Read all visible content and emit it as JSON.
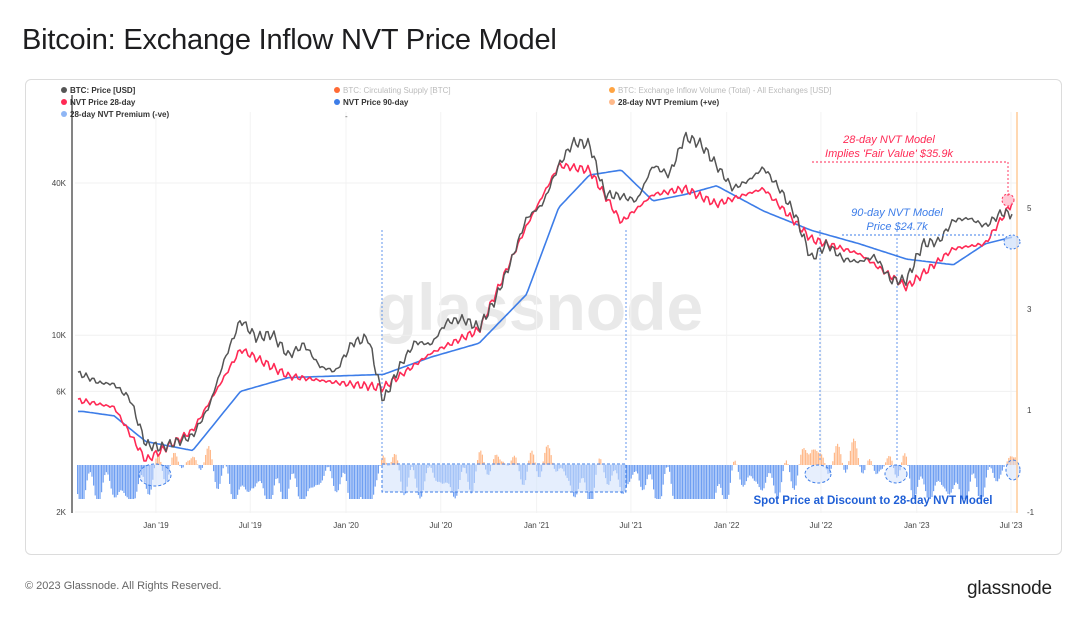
{
  "page": {
    "title": "Bitcoin: Exchange Inflow NVT Price Model",
    "footer": "© 2023 Glassnode. All Rights Reserved.",
    "brand": "glassnode",
    "watermark": "glassnode"
  },
  "colors": {
    "price": "#555555",
    "nvt28": "#ff2a55",
    "nvt90": "#3d7de8",
    "premium_pos": "#ffb98a",
    "premium_neg": "#6f9ff2",
    "supply": "#ff5a1f",
    "inflow": "#ff9a2e"
  },
  "chart_data": {
    "type": "line",
    "title": "Bitcoin: Exchange Inflow NVT Price Model",
    "x_ticks": [
      "Jan '19",
      "Jul '19",
      "Jan '20",
      "Jul '20",
      "Jan '21",
      "Jul '21",
      "Jan '22",
      "Jul '22",
      "Jan '23",
      "Jul '23"
    ],
    "y_left_ticks": [
      "2K",
      "6K",
      "10K",
      "40K"
    ],
    "y_right_ticks": [
      "5",
      "3",
      "1",
      "-1"
    ],
    "y_left_scale": "log",
    "legend": [
      {
        "name": "BTC: Price [USD]",
        "color": "#555555",
        "muted": false
      },
      {
        "name": "BTC: Circulating Supply [BTC]",
        "color": "#ff5a1f",
        "muted": true
      },
      {
        "name": "BTC: Exchange Inflow Volume (Total) - All Exchanges [USD]",
        "color": "#ff9a2e",
        "muted": true
      },
      {
        "name": "NVT Price 28-day",
        "color": "#ff2a55",
        "muted": false
      },
      {
        "name": "NVT Price 90-day",
        "color": "#3d7de8",
        "muted": false
      },
      {
        "name": "28-day NVT Premium (+ve)",
        "color": "#ffb98a",
        "muted": false
      },
      {
        "name": "28-day NVT Premium (-ve)",
        "color": "#8fb6f5",
        "muted": false
      }
    ],
    "legend_extra": "-",
    "series": [
      {
        "name": "BTC: Price [USD]",
        "x": [
          "2018-08",
          "2018-09",
          "2018-10",
          "2018-11",
          "2018-12",
          "2019-01",
          "2019-02",
          "2019-03",
          "2019-04",
          "2019-05",
          "2019-06",
          "2019-07",
          "2019-08",
          "2019-09",
          "2019-10",
          "2019-11",
          "2019-12",
          "2020-01",
          "2020-02",
          "2020-03",
          "2020-04",
          "2020-05",
          "2020-06",
          "2020-07",
          "2020-08",
          "2020-09",
          "2020-10",
          "2020-11",
          "2020-12",
          "2021-01",
          "2021-02",
          "2021-03",
          "2021-04",
          "2021-05",
          "2021-06",
          "2021-07",
          "2021-08",
          "2021-09",
          "2021-10",
          "2021-11",
          "2021-12",
          "2022-01",
          "2022-02",
          "2022-03",
          "2022-04",
          "2022-05",
          "2022-06",
          "2022-07",
          "2022-08",
          "2022-09",
          "2022-10",
          "2022-11",
          "2022-12",
          "2023-01",
          "2023-02",
          "2023-03",
          "2023-04",
          "2023-05",
          "2023-06",
          "2023-07"
        ],
        "values": [
          7000,
          6500,
          6400,
          5600,
          3700,
          3600,
          3800,
          4000,
          5200,
          8000,
          11500,
          9800,
          10100,
          8300,
          9200,
          7500,
          7200,
          9300,
          9800,
          5500,
          7500,
          9400,
          9200,
          11300,
          11600,
          10700,
          13700,
          19500,
          29000,
          33000,
          47000,
          58000,
          57000,
          36000,
          35500,
          34000,
          47000,
          43000,
          61000,
          57000,
          47000,
          38000,
          41000,
          46000,
          38000,
          30000,
          20000,
          23000,
          20000,
          19500,
          20500,
          16500,
          16500,
          23000,
          23500,
          28500,
          29000,
          27000,
          30500,
          30000
        ]
      },
      {
        "name": "NVT Price 28-day",
        "x": [
          "2018-08",
          "2018-10",
          "2018-12",
          "2019-03",
          "2019-06",
          "2019-09",
          "2019-12",
          "2020-03",
          "2020-06",
          "2020-09",
          "2020-12",
          "2021-02",
          "2021-04",
          "2021-06",
          "2021-08",
          "2021-10",
          "2021-12",
          "2022-03",
          "2022-06",
          "2022-09",
          "2022-12",
          "2023-03",
          "2023-05",
          "2023-07"
        ],
        "values": [
          5500,
          5200,
          3200,
          4200,
          8800,
          6900,
          6500,
          6200,
          8500,
          10500,
          27000,
          47000,
          45000,
          28000,
          36000,
          38000,
          33000,
          38000,
          24000,
          21000,
          15500,
          22000,
          23000,
          35900
        ]
      },
      {
        "name": "NVT Price 90-day",
        "x": [
          "2018-08",
          "2018-10",
          "2018-12",
          "2019-03",
          "2019-06",
          "2019-09",
          "2019-12",
          "2020-03",
          "2020-06",
          "2020-09",
          "2020-12",
          "2021-02",
          "2021-04",
          "2021-06",
          "2021-08",
          "2021-10",
          "2021-12",
          "2022-03",
          "2022-06",
          "2022-09",
          "2022-12",
          "2023-03",
          "2023-05",
          "2023-07"
        ],
        "values": [
          5000,
          4800,
          3800,
          3500,
          6000,
          6800,
          6900,
          7000,
          8200,
          9300,
          14500,
          32000,
          43000,
          45000,
          34000,
          36000,
          39000,
          31000,
          26000,
          23000,
          20000,
          19000,
          23000,
          24700
        ]
      }
    ],
    "annotations": [
      {
        "text_line1": "28-day NVT Model",
        "text_line2": "Implies 'Fair Value' $35.9k",
        "color": "#ff2a55"
      },
      {
        "text_line1": "90-day NVT Model",
        "text_line2": "Price $24.7k",
        "color": "#3d7de8"
      },
      {
        "text": "Spot Price at Discount to 28-day NVT Model",
        "color": "#1f5fd6"
      }
    ],
    "discount_periods": [
      "Dec '18",
      "Mar '20 - Jun '21",
      "Jun '22",
      "Nov '22",
      "Jun '23"
    ]
  }
}
